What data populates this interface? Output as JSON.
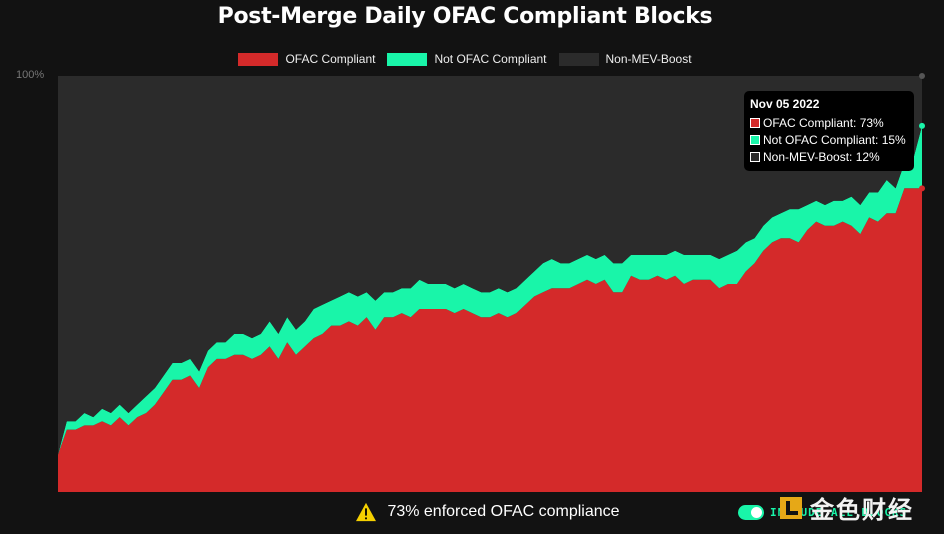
{
  "chart_data": {
    "type": "area",
    "title": "Post-Merge Daily OFAC Compliant Blocks",
    "stacked": true,
    "ylim": [
      0,
      100
    ],
    "y_tick_label": "100%",
    "legend_position": "top",
    "grid": false,
    "series": [
      {
        "name": "OFAC Compliant",
        "color": "#d42a2a",
        "values": [
          9,
          15,
          15,
          16,
          16,
          17,
          16,
          18,
          16,
          18,
          19,
          21,
          24,
          27,
          27,
          28,
          25,
          30,
          32,
          32,
          33,
          33,
          32,
          33,
          35,
          32,
          36,
          33,
          35,
          37,
          38,
          40,
          40,
          41,
          40,
          42,
          39,
          42,
          42,
          43,
          42,
          44,
          44,
          44,
          44,
          43,
          44,
          43,
          42,
          42,
          43,
          42,
          43,
          45,
          47,
          48,
          49,
          49,
          49,
          50,
          51,
          50,
          51,
          48,
          48,
          52,
          51,
          51,
          52,
          51,
          52,
          50,
          51,
          51,
          51,
          49,
          50,
          50,
          53,
          55,
          58,
          60,
          61,
          61,
          60,
          63,
          65,
          64,
          64,
          65,
          64,
          62,
          66,
          65,
          67,
          67,
          73,
          73,
          73
        ]
      },
      {
        "name": "Not OFAC Compliant",
        "color": "#19f5a9",
        "values": [
          0,
          2,
          2,
          3,
          2,
          3,
          3,
          3,
          3,
          3,
          4,
          4,
          4,
          4,
          4,
          4,
          4,
          4,
          4,
          4,
          5,
          5,
          5,
          5,
          6,
          6,
          6,
          6,
          6,
          7,
          7,
          6,
          7,
          7,
          7,
          6,
          7,
          6,
          6,
          6,
          7,
          7,
          6,
          6,
          6,
          6,
          6,
          6,
          6,
          6,
          6,
          6,
          6,
          6,
          6,
          7,
          7,
          6,
          6,
          6,
          6,
          6,
          6,
          7,
          7,
          5,
          6,
          6,
          5,
          6,
          6,
          7,
          6,
          6,
          6,
          7,
          7,
          8,
          7,
          6,
          6,
          6,
          6,
          7,
          8,
          6,
          5,
          5,
          6,
          5,
          7,
          7,
          6,
          7,
          8,
          6,
          6,
          7,
          15
        ]
      },
      {
        "name": "Non-MEV-Boost",
        "color": "#2b2b2b",
        "values": [
          91,
          83,
          83,
          81,
          82,
          80,
          81,
          79,
          81,
          79,
          77,
          75,
          72,
          69,
          69,
          68,
          71,
          66,
          64,
          64,
          62,
          62,
          63,
          62,
          59,
          62,
          58,
          61,
          59,
          56,
          55,
          54,
          53,
          52,
          53,
          52,
          54,
          52,
          52,
          51,
          51,
          49,
          50,
          50,
          50,
          51,
          50,
          51,
          52,
          52,
          51,
          52,
          51,
          49,
          47,
          45,
          44,
          45,
          45,
          44,
          43,
          44,
          43,
          45,
          45,
          43,
          43,
          43,
          43,
          43,
          42,
          43,
          43,
          43,
          43,
          44,
          43,
          42,
          40,
          39,
          36,
          34,
          33,
          32,
          32,
          31,
          30,
          31,
          30,
          30,
          29,
          31,
          28,
          28,
          25,
          27,
          21,
          20,
          12
        ]
      }
    ],
    "tooltip": {
      "date": "Nov 05 2022",
      "rows": [
        {
          "label": "OFAC Compliant: 73%",
          "color": "#d42a2a"
        },
        {
          "label": "Not OFAC Compliant: 15%",
          "color": "#19f5a9"
        },
        {
          "label": "Non-MEV-Boost: 12%",
          "color": "#2b2b2b"
        }
      ]
    }
  },
  "footer": {
    "warning_text": "73% enforced OFAC compliance",
    "toggle_label": "INCLUDE ALL BLOCKS",
    "toggle_on": true
  },
  "watermark": {
    "text": "金色财经"
  },
  "colors": {
    "background": "#121212",
    "warning_yellow": "#f5d000"
  }
}
